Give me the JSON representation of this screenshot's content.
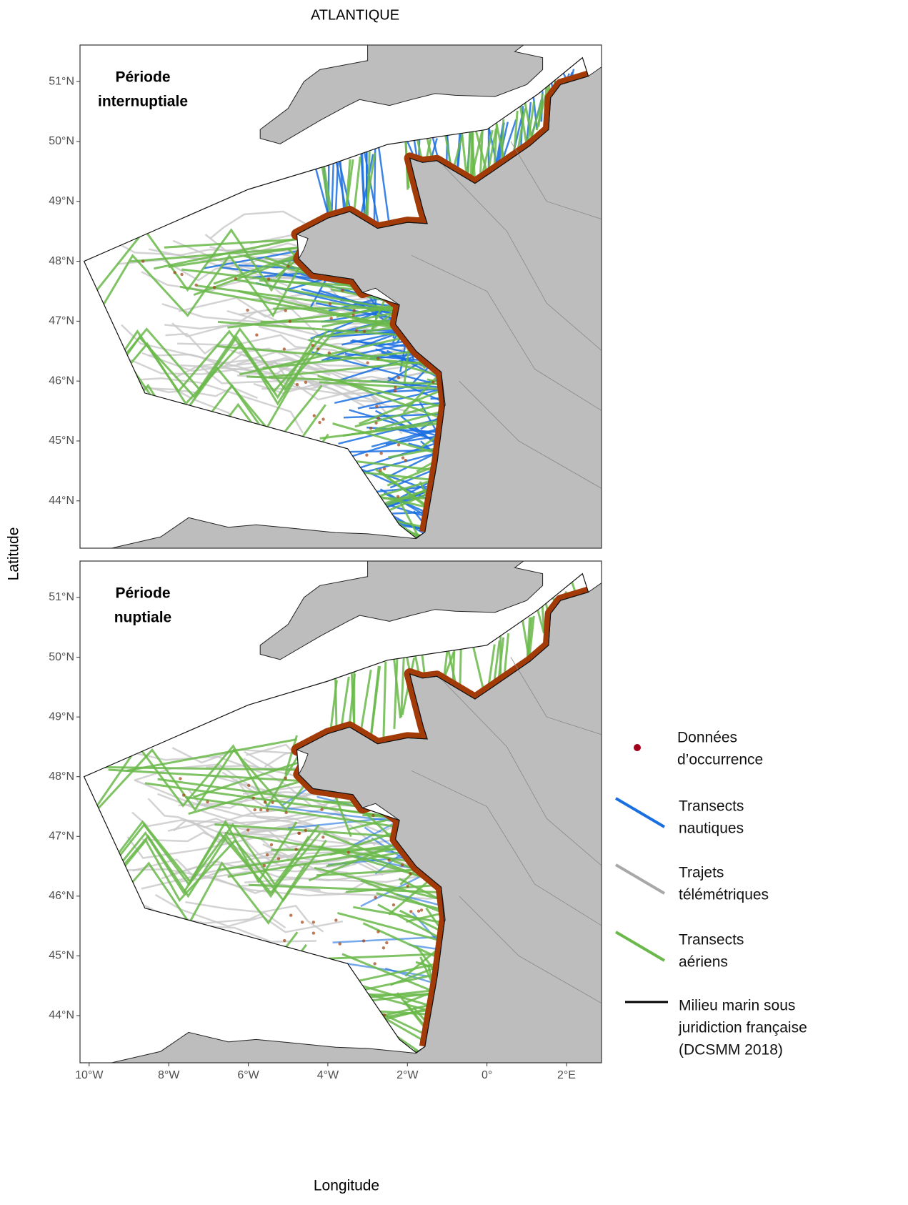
{
  "title": "ATLANTIQUE",
  "panels": [
    {
      "label": [
        "Période",
        "internuptiale"
      ]
    },
    {
      "label": [
        "Période",
        "nuptiale"
      ]
    }
  ],
  "axes": {
    "x_label": "Longitude",
    "y_label": "Latitude",
    "xlim": [
      -10.23,
      2.88
    ],
    "ylim": [
      43.21,
      51.61
    ],
    "xticks": [
      {
        "value": -10,
        "label": "10°W"
      },
      {
        "value": -8,
        "label": "8°W"
      },
      {
        "value": -6,
        "label": "6°W"
      },
      {
        "value": -4,
        "label": "4°W"
      },
      {
        "value": -2,
        "label": "2°W"
      },
      {
        "value": 0,
        "label": "0°"
      },
      {
        "value": 2,
        "label": "2°E"
      }
    ],
    "yticks": [
      {
        "value": 44,
        "label": "44°N"
      },
      {
        "value": 45,
        "label": "45°N"
      },
      {
        "value": 46,
        "label": "46°N"
      },
      {
        "value": 47,
        "label": "47°N"
      },
      {
        "value": 48,
        "label": "48°N"
      },
      {
        "value": 49,
        "label": "49°N"
      },
      {
        "value": 50,
        "label": "50°N"
      },
      {
        "value": 51,
        "label": "51°N"
      }
    ]
  },
  "legend": [
    {
      "lines": [
        "Données",
        "d’occurrence"
      ],
      "color": "#a3001b"
    },
    {
      "lines": [
        "Transects",
        "nautiques"
      ],
      "color": "#1a6fe0"
    },
    {
      "lines": [
        "Trajets",
        "télémétriques"
      ],
      "color": "#a8a8a8"
    },
    {
      "lines": [
        "Transects",
        "aériens"
      ],
      "color": "#6ab94a"
    },
    {
      "lines": [
        "Milieu marin sous",
        "juridiction française",
        "(DCSMM 2018)"
      ],
      "color": "#000000"
    }
  ]
}
